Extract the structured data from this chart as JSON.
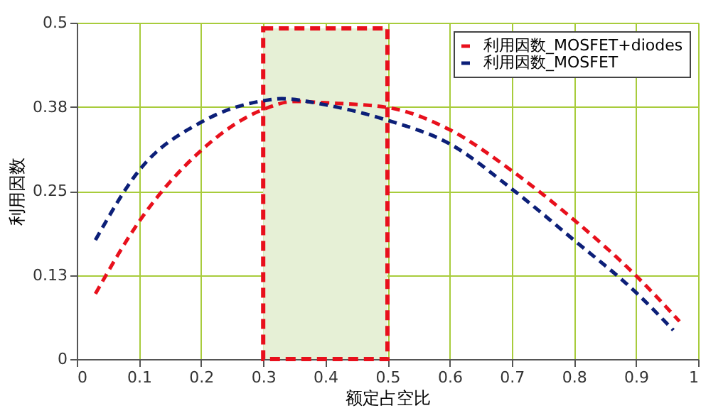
{
  "chart_data": {
    "type": "line",
    "xlabel": "额定占空比",
    "ylabel": "利用因数",
    "xlim": [
      0,
      1
    ],
    "ylim": [
      0,
      0.5
    ],
    "xticks": [
      0,
      0.1,
      0.2,
      0.3,
      0.4,
      0.5,
      0.6,
      0.7,
      0.8,
      0.9,
      1
    ],
    "yticks": [
      0,
      {
        "value": 0.125,
        "label": "0.13"
      },
      0.25,
      {
        "value": 0.375,
        "label": "0.38"
      },
      0.5
    ],
    "grid": true,
    "legend": "top right",
    "line_style": "dashed",
    "marker": "none",
    "bands": [
      {
        "axis": "x",
        "from": 0.3,
        "to": 0.5,
        "color": "#e6f0d6"
      }
    ],
    "series": [
      {
        "name": "利用因数_MOSFET+diodes",
        "color": "#e8101c",
        "x": [
          0.03,
          0.1,
          0.2,
          0.3,
          0.35,
          0.4,
          0.5,
          0.6,
          0.7,
          0.8,
          0.9,
          0.97
        ],
        "values": [
          0.097,
          0.204,
          0.31,
          0.371,
          0.383,
          0.381,
          0.374,
          0.341,
          0.28,
          0.207,
          0.124,
          0.056
        ]
      },
      {
        "name": "利用因数_MOSFET",
        "color": "#0c1f78",
        "x": [
          0.03,
          0.1,
          0.2,
          0.3,
          0.33,
          0.4,
          0.5,
          0.6,
          0.7,
          0.8,
          0.9,
          0.96
        ],
        "values": [
          0.177,
          0.28,
          0.352,
          0.384,
          0.387,
          0.378,
          0.355,
          0.32,
          0.253,
          0.177,
          0.099,
          0.043
        ]
      }
    ]
  }
}
